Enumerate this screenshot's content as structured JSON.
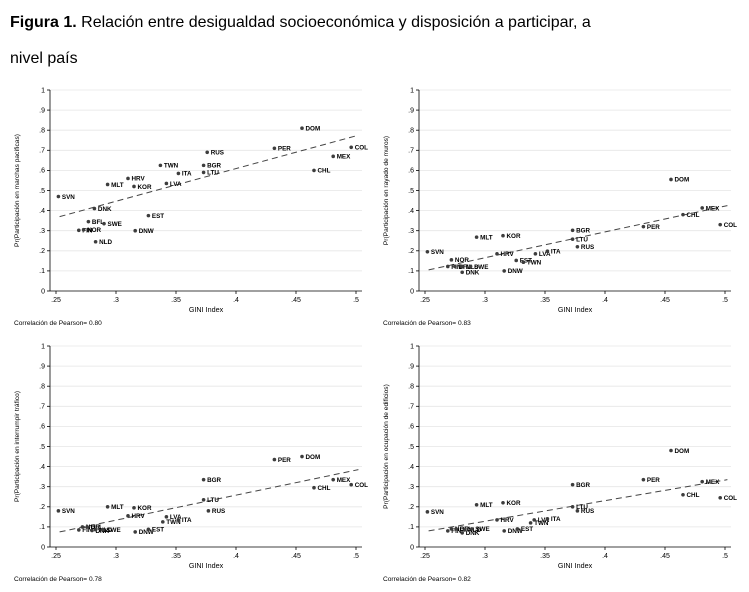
{
  "title": {
    "prefix": "Figura 1.",
    "line1_rest": " Relación entre desigualdad socioeconómica y disposición a participar, a",
    "line2": "nivel país"
  },
  "colors": {
    "point": "#3d3d3d",
    "point_label": "#111111",
    "trend": "#444444",
    "grid": "#e6e6e6",
    "axis": "#000000"
  },
  "chart_data": [
    {
      "type": "scatter",
      "ylabel": "Pr(Participación en marchas pacíficas)",
      "xlabel": "GINI Index",
      "footnote": "Correlación de Pearson= 0.80",
      "xlim": [
        0.245,
        0.505
      ],
      "ylim": [
        0,
        1
      ],
      "xticks": {
        "values": [
          0.25,
          0.3,
          0.35,
          0.4,
          0.45,
          0.5
        ],
        "labels": [
          ".25",
          ".3",
          ".35",
          ".4",
          ".45",
          ".5"
        ]
      },
      "yticks": {
        "values": [
          0,
          0.1,
          0.2,
          0.3,
          0.4,
          0.5,
          0.6,
          0.7,
          0.8,
          0.9,
          1
        ],
        "labels": [
          "0",
          ".1",
          ".2",
          ".3",
          ".4",
          ".5",
          ".6",
          ".7",
          ".8",
          ".9",
          "1"
        ]
      },
      "grid": "horizontal",
      "legend": "none",
      "trend": {
        "style": "dashed",
        "x1": 0.253,
        "y1": 0.37,
        "x2": 0.502,
        "y2": 0.775
      },
      "points": [
        {
          "label": "SVN",
          "x": 0.252,
          "y": 0.47
        },
        {
          "label": "FIN",
          "x": 0.269,
          "y": 0.302
        },
        {
          "label": "NOR",
          "x": 0.273,
          "y": 0.305
        },
        {
          "label": "BFL",
          "x": 0.277,
          "y": 0.345
        },
        {
          "label": "DNK",
          "x": 0.282,
          "y": 0.41
        },
        {
          "label": "NLD",
          "x": 0.283,
          "y": 0.245
        },
        {
          "label": "SWE",
          "x": 0.29,
          "y": 0.335
        },
        {
          "label": "MLT",
          "x": 0.293,
          "y": 0.53
        },
        {
          "label": "HRV",
          "x": 0.31,
          "y": 0.56
        },
        {
          "label": "KOR",
          "x": 0.315,
          "y": 0.52
        },
        {
          "label": "DNW",
          "x": 0.316,
          "y": 0.3
        },
        {
          "label": "EST",
          "x": 0.327,
          "y": 0.375
        },
        {
          "label": "TWN",
          "x": 0.337,
          "y": 0.625
        },
        {
          "label": "LVA",
          "x": 0.342,
          "y": 0.535
        },
        {
          "label": "ITA",
          "x": 0.352,
          "y": 0.585
        },
        {
          "label": "BGR",
          "x": 0.373,
          "y": 0.625
        },
        {
          "label": "LTU",
          "x": 0.373,
          "y": 0.59
        },
        {
          "label": "RUS",
          "x": 0.376,
          "y": 0.69
        },
        {
          "label": "PER",
          "x": 0.432,
          "y": 0.71
        },
        {
          "label": "DOM",
          "x": 0.455,
          "y": 0.81
        },
        {
          "label": "CHL",
          "x": 0.465,
          "y": 0.6
        },
        {
          "label": "MEX",
          "x": 0.481,
          "y": 0.67
        },
        {
          "label": "COL",
          "x": 0.496,
          "y": 0.715
        }
      ]
    },
    {
      "type": "scatter",
      "ylabel": "Pr(Participación en rayado de muros)",
      "xlabel": "GINI Index",
      "footnote": "Correlación de Pearson= 0.83",
      "xlim": [
        0.245,
        0.505
      ],
      "ylim": [
        0,
        1
      ],
      "xticks": {
        "values": [
          0.25,
          0.3,
          0.35,
          0.4,
          0.45,
          0.5
        ],
        "labels": [
          ".25",
          ".3",
          ".35",
          ".4",
          ".45",
          ".5"
        ]
      },
      "yticks": {
        "values": [
          0,
          0.1,
          0.2,
          0.3,
          0.4,
          0.5,
          0.6,
          0.7,
          0.8,
          0.9,
          1
        ],
        "labels": [
          "0",
          ".1",
          ".2",
          ".3",
          ".4",
          ".5",
          ".6",
          ".7",
          ".8",
          ".9",
          "1"
        ]
      },
      "grid": "horizontal",
      "legend": "none",
      "trend": {
        "style": "dashed",
        "x1": 0.253,
        "y1": 0.105,
        "x2": 0.502,
        "y2": 0.425
      },
      "points": [
        {
          "label": "SVN",
          "x": 0.252,
          "y": 0.195
        },
        {
          "label": "FIN",
          "x": 0.269,
          "y": 0.122
        },
        {
          "label": "NOR",
          "x": 0.272,
          "y": 0.155
        },
        {
          "label": "BFL",
          "x": 0.275,
          "y": 0.122
        },
        {
          "label": "DNK",
          "x": 0.281,
          "y": 0.093
        },
        {
          "label": "NLD",
          "x": 0.281,
          "y": 0.122
        },
        {
          "label": "SWE",
          "x": 0.288,
          "y": 0.122
        },
        {
          "label": "MLT",
          "x": 0.293,
          "y": 0.268
        },
        {
          "label": "HRV",
          "x": 0.31,
          "y": 0.185
        },
        {
          "label": "KOR",
          "x": 0.315,
          "y": 0.275
        },
        {
          "label": "DNW",
          "x": 0.316,
          "y": 0.1
        },
        {
          "label": "EST",
          "x": 0.326,
          "y": 0.152
        },
        {
          "label": "TWN",
          "x": 0.332,
          "y": 0.143
        },
        {
          "label": "LVA",
          "x": 0.342,
          "y": 0.185
        },
        {
          "label": "ITA",
          "x": 0.352,
          "y": 0.198
        },
        {
          "label": "BGR",
          "x": 0.373,
          "y": 0.302
        },
        {
          "label": "LTU",
          "x": 0.373,
          "y": 0.258
        },
        {
          "label": "RUS",
          "x": 0.377,
          "y": 0.22
        },
        {
          "label": "PER",
          "x": 0.432,
          "y": 0.32
        },
        {
          "label": "DOM",
          "x": 0.455,
          "y": 0.555
        },
        {
          "label": "CHL",
          "x": 0.465,
          "y": 0.38
        },
        {
          "label": "MEX",
          "x": 0.481,
          "y": 0.413
        },
        {
          "label": "COL",
          "x": 0.496,
          "y": 0.33
        }
      ]
    },
    {
      "type": "scatter",
      "ylabel": "Pr(Participación en interrumpir tráfico)",
      "xlabel": "GINI Index",
      "footnote": "Correlación de Pearson= 0.78",
      "xlim": [
        0.245,
        0.505
      ],
      "ylim": [
        0,
        1
      ],
      "xticks": {
        "values": [
          0.25,
          0.3,
          0.35,
          0.4,
          0.45,
          0.5
        ],
        "labels": [
          ".25",
          ".3",
          ".35",
          ".4",
          ".45",
          ".5"
        ]
      },
      "yticks": {
        "values": [
          0,
          0.1,
          0.2,
          0.3,
          0.4,
          0.5,
          0.6,
          0.7,
          0.8,
          0.9,
          1
        ],
        "labels": [
          "0",
          ".1",
          ".2",
          ".3",
          ".4",
          ".5",
          ".6",
          ".7",
          ".8",
          ".9",
          "1"
        ]
      },
      "grid": "horizontal",
      "legend": "none",
      "trend": {
        "style": "dashed",
        "x1": 0.253,
        "y1": 0.075,
        "x2": 0.502,
        "y2": 0.385
      },
      "points": [
        {
          "label": "SVN",
          "x": 0.252,
          "y": 0.18
        },
        {
          "label": "FIN",
          "x": 0.269,
          "y": 0.085
        },
        {
          "label": "NOR",
          "x": 0.272,
          "y": 0.1
        },
        {
          "label": "BFL",
          "x": 0.276,
          "y": 0.1
        },
        {
          "label": "DNK",
          "x": 0.28,
          "y": 0.082
        },
        {
          "label": "NLD",
          "x": 0.283,
          "y": 0.086
        },
        {
          "label": "SWE",
          "x": 0.289,
          "y": 0.086
        },
        {
          "label": "MLT",
          "x": 0.293,
          "y": 0.2
        },
        {
          "label": "HRV",
          "x": 0.31,
          "y": 0.155
        },
        {
          "label": "KOR",
          "x": 0.315,
          "y": 0.195
        },
        {
          "label": "DNW",
          "x": 0.316,
          "y": 0.075
        },
        {
          "label": "EST",
          "x": 0.327,
          "y": 0.088
        },
        {
          "label": "TWN",
          "x": 0.339,
          "y": 0.125
        },
        {
          "label": "LVA",
          "x": 0.342,
          "y": 0.15
        },
        {
          "label": "ITA",
          "x": 0.352,
          "y": 0.135
        },
        {
          "label": "BGR",
          "x": 0.373,
          "y": 0.335
        },
        {
          "label": "LTU",
          "x": 0.373,
          "y": 0.235
        },
        {
          "label": "RUS",
          "x": 0.377,
          "y": 0.18
        },
        {
          "label": "PER",
          "x": 0.432,
          "y": 0.435
        },
        {
          "label": "DOM",
          "x": 0.455,
          "y": 0.45
        },
        {
          "label": "CHL",
          "x": 0.465,
          "y": 0.295
        },
        {
          "label": "MEX",
          "x": 0.481,
          "y": 0.335
        },
        {
          "label": "COL",
          "x": 0.496,
          "y": 0.31
        }
      ]
    },
    {
      "type": "scatter",
      "ylabel": "Pr(Participación en ocupación de edificios)",
      "xlabel": "GINI Index",
      "footnote": "Correlación de Pearson= 0.82",
      "xlim": [
        0.245,
        0.505
      ],
      "ylim": [
        0,
        1
      ],
      "xticks": {
        "values": [
          0.25,
          0.3,
          0.35,
          0.4,
          0.45,
          0.5
        ],
        "labels": [
          ".25",
          ".3",
          ".35",
          ".4",
          ".45",
          ".5"
        ]
      },
      "yticks": {
        "values": [
          0,
          0.1,
          0.2,
          0.3,
          0.4,
          0.5,
          0.6,
          0.7,
          0.8,
          0.9,
          1
        ],
        "labels": [
          "0",
          ".1",
          ".2",
          ".3",
          ".4",
          ".5",
          ".6",
          ".7",
          ".8",
          ".9",
          "1"
        ]
      },
      "grid": "horizontal",
      "legend": "none",
      "trend": {
        "style": "dashed",
        "x1": 0.253,
        "y1": 0.08,
        "x2": 0.502,
        "y2": 0.335
      },
      "points": [
        {
          "label": "SVN",
          "x": 0.252,
          "y": 0.175
        },
        {
          "label": "FIN",
          "x": 0.269,
          "y": 0.08
        },
        {
          "label": "NOR",
          "x": 0.272,
          "y": 0.09
        },
        {
          "label": "BFL",
          "x": 0.276,
          "y": 0.09
        },
        {
          "label": "DNK",
          "x": 0.281,
          "y": 0.07
        },
        {
          "label": "NLD",
          "x": 0.283,
          "y": 0.085
        },
        {
          "label": "SWE",
          "x": 0.289,
          "y": 0.09
        },
        {
          "label": "MLT",
          "x": 0.293,
          "y": 0.21
        },
        {
          "label": "HRV",
          "x": 0.31,
          "y": 0.135
        },
        {
          "label": "KOR",
          "x": 0.315,
          "y": 0.22
        },
        {
          "label": "DNW",
          "x": 0.316,
          "y": 0.08
        },
        {
          "label": "EST",
          "x": 0.327,
          "y": 0.09
        },
        {
          "label": "TWN",
          "x": 0.338,
          "y": 0.12
        },
        {
          "label": "LVA",
          "x": 0.341,
          "y": 0.135
        },
        {
          "label": "ITA",
          "x": 0.352,
          "y": 0.14
        },
        {
          "label": "BGR",
          "x": 0.373,
          "y": 0.31
        },
        {
          "label": "LTU",
          "x": 0.373,
          "y": 0.2
        },
        {
          "label": "RUS",
          "x": 0.377,
          "y": 0.18
        },
        {
          "label": "PER",
          "x": 0.432,
          "y": 0.335
        },
        {
          "label": "DOM",
          "x": 0.455,
          "y": 0.48
        },
        {
          "label": "CHL",
          "x": 0.465,
          "y": 0.26
        },
        {
          "label": "MEX",
          "x": 0.481,
          "y": 0.325
        },
        {
          "label": "COL",
          "x": 0.496,
          "y": 0.245
        }
      ]
    }
  ]
}
